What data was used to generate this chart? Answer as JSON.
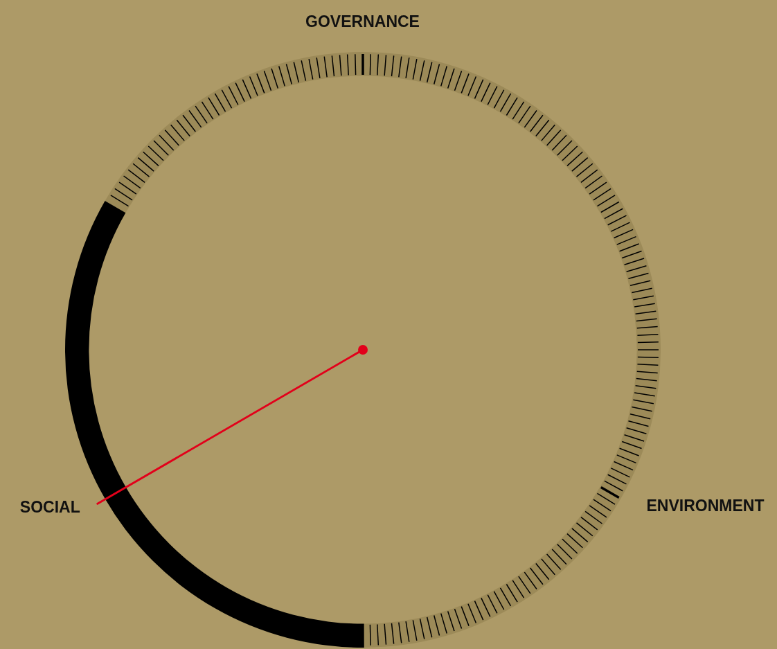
{
  "chart_data": {
    "type": "donut",
    "categories": [
      "GOVERNANCE",
      "ENVIRONMENT",
      "SOCIAL"
    ],
    "values": [
      33.3,
      33.3,
      33.4
    ],
    "colors": [
      "#9c8a58",
      "#9c8a58",
      "#000000"
    ],
    "needle": "SOCIAL",
    "legend": false
  }
}
